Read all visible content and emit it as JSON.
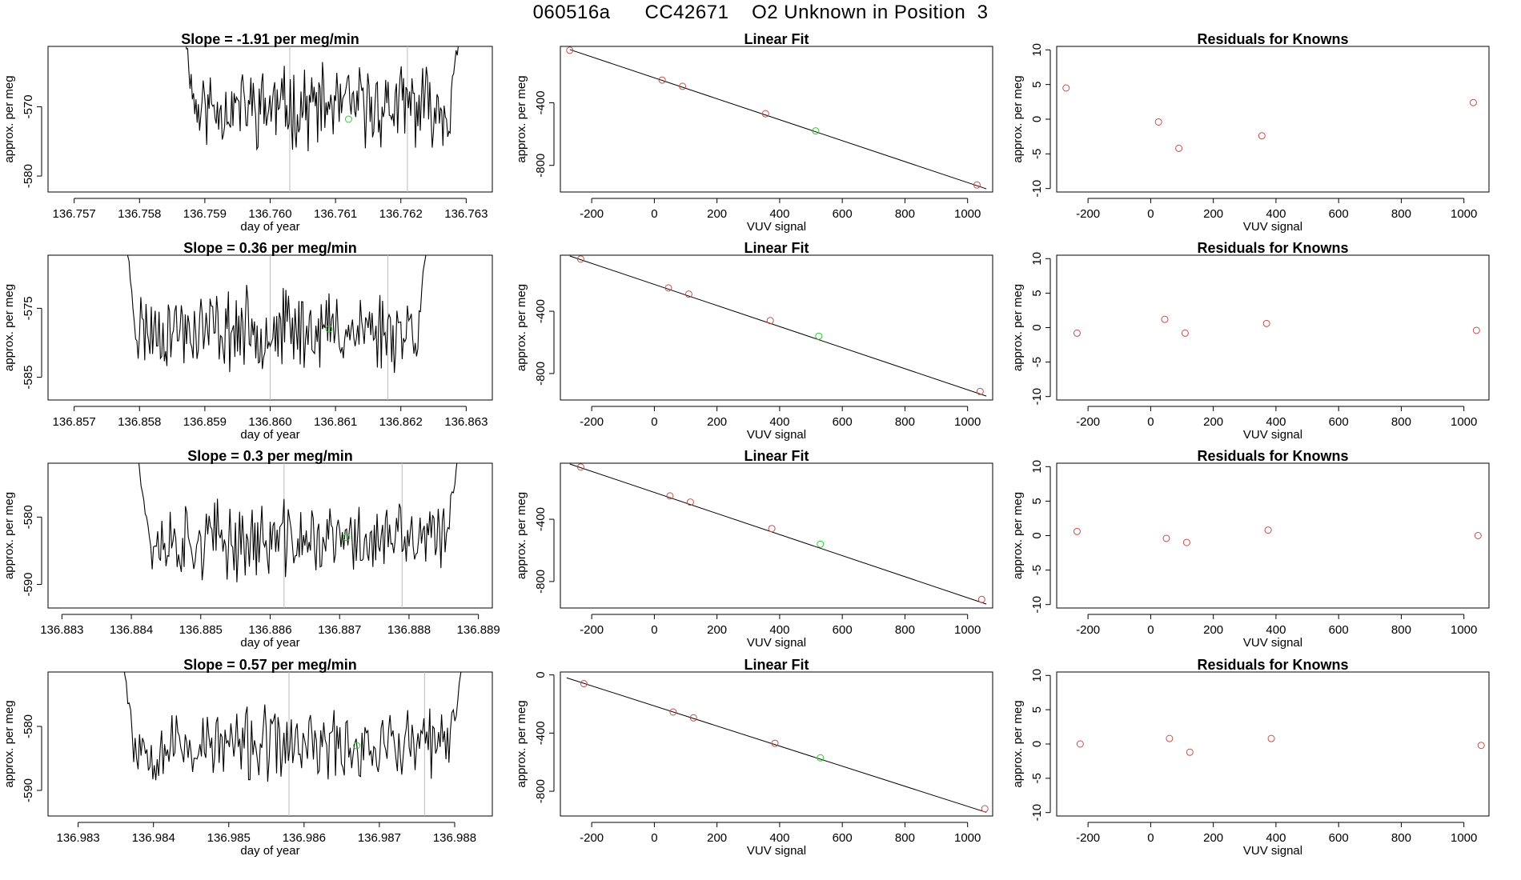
{
  "page_title": "060516a      CC42671    O2 Unknown in Position  3",
  "colors": {
    "trace": "#000000",
    "known_point": "#c0504d",
    "unknown_point": "#2ecc2e",
    "vline": "#bbbbbb",
    "axis": "#000000"
  },
  "labels": {
    "time_ylabel": "approx. per meg",
    "time_xlabel": "day of year",
    "fit_title": "Linear Fit",
    "fit_ylabel": "approx. per meg",
    "fit_xlabel": "VUV signal",
    "resid_title": "Residuals for Knowns",
    "resid_ylabel": "approx. per meg",
    "resid_xlabel": "VUV signal"
  },
  "chart_data": [
    {
      "type": "line",
      "panel": "time-series",
      "row": 1,
      "title": "Slope =  -1.91  per meg/min",
      "xlabel": "day of year",
      "ylabel": "approx. per meg",
      "xlim": [
        136.7566,
        136.7634
      ],
      "ylim": [
        -582.3,
        -561.3
      ],
      "xticks": [
        "136.757",
        "136.758",
        "136.759",
        "136.760",
        "136.761",
        "136.762",
        "136.763"
      ],
      "yticks": [
        "-570",
        "-580"
      ],
      "trace_start": 136.7587,
      "trace_end": 136.7629,
      "start_level": -560,
      "end_level": -560,
      "base": -570,
      "noise": 4.5,
      "seed": 11,
      "vlines": [
        136.7603,
        136.7621
      ],
      "unknown_point": {
        "x": 136.7612,
        "y": -571.8
      }
    },
    {
      "type": "scatter",
      "panel": "linear-fit",
      "row": 1,
      "title": "Linear Fit",
      "xlabel": "VUV signal",
      "ylabel": "approx. per meg",
      "xlim": [
        -300,
        1080
      ],
      "ylim": [
        -970,
        -40
      ],
      "xticks": [
        -200,
        0,
        200,
        400,
        600,
        800,
        1000
      ],
      "yticks": [
        -400,
        -800
      ],
      "fit_line": {
        "x": [
          -270,
          1060
        ],
        "y": [
          -60,
          -950
        ]
      },
      "knowns": [
        {
          "x": -270,
          "y": -65
        },
        {
          "x": 25,
          "y": -255
        },
        {
          "x": 90,
          "y": -295
        },
        {
          "x": 355,
          "y": -470
        },
        {
          "x": 1030,
          "y": -925
        }
      ],
      "unknown": {
        "x": 515,
        "y": -580
      }
    },
    {
      "type": "scatter",
      "panel": "residuals",
      "row": 1,
      "title": "Residuals for Knowns",
      "xlabel": "VUV signal",
      "ylabel": "approx. per meg",
      "xlim": [
        -300,
        1080
      ],
      "ylim": [
        -10.5,
        10.5
      ],
      "xticks": [
        -200,
        0,
        200,
        400,
        600,
        800,
        1000
      ],
      "yticks": [
        10,
        5,
        0,
        -5,
        -10
      ],
      "points": [
        {
          "x": -270,
          "y": 4.5
        },
        {
          "x": 25,
          "y": -0.4
        },
        {
          "x": 90,
          "y": -4.2
        },
        {
          "x": 355,
          "y": -2.4
        },
        {
          "x": 1030,
          "y": 2.4
        }
      ]
    },
    {
      "type": "line",
      "panel": "time-series",
      "row": 2,
      "title": "Slope =  0.36  per meg/min",
      "xlabel": "day of year",
      "ylabel": "approx. per meg",
      "xlim": [
        136.8566,
        136.8634
      ],
      "ylim": [
        -588.3,
        -567.3
      ],
      "xticks": [
        "136.857",
        "136.858",
        "136.859",
        "136.860",
        "136.861",
        "136.862",
        "136.863"
      ],
      "yticks": [
        "-575",
        "-585"
      ],
      "trace_start": 136.8578,
      "trace_end": 136.8624,
      "start_level": -566,
      "end_level": -566,
      "base": -578,
      "noise": 4.5,
      "seed": 23,
      "vlines": [
        136.86,
        136.8618
      ],
      "unknown_point": {
        "x": 136.8609,
        "y": -578.0
      }
    },
    {
      "type": "scatter",
      "panel": "linear-fit",
      "row": 2,
      "title": "Linear Fit",
      "xlabel": "VUV signal",
      "ylabel": "approx. per meg",
      "xlim": [
        -300,
        1080
      ],
      "ylim": [
        -970,
        -40
      ],
      "xticks": [
        -200,
        0,
        200,
        400,
        600,
        800,
        1000
      ],
      "yticks": [
        -400,
        -800
      ],
      "fit_line": {
        "x": [
          -270,
          1060
        ],
        "y": [
          -45,
          -945
        ]
      },
      "knowns": [
        {
          "x": -235,
          "y": -65
        },
        {
          "x": 45,
          "y": -250
        },
        {
          "x": 110,
          "y": -290
        },
        {
          "x": 370,
          "y": -460
        },
        {
          "x": 1040,
          "y": -915
        }
      ],
      "unknown": {
        "x": 525,
        "y": -560
      }
    },
    {
      "type": "scatter",
      "panel": "residuals",
      "row": 2,
      "title": "Residuals for Knowns",
      "xlabel": "VUV signal",
      "ylabel": "approx. per meg",
      "xlim": [
        -300,
        1080
      ],
      "ylim": [
        -10.5,
        10.5
      ],
      "xticks": [
        -200,
        0,
        200,
        400,
        600,
        800,
        1000
      ],
      "yticks": [
        10,
        5,
        0,
        -5,
        -10
      ],
      "points": [
        {
          "x": -235,
          "y": -0.8
        },
        {
          "x": 45,
          "y": 1.2
        },
        {
          "x": 110,
          "y": -0.8
        },
        {
          "x": 370,
          "y": 0.6
        },
        {
          "x": 1040,
          "y": -0.4
        }
      ]
    },
    {
      "type": "line",
      "panel": "time-series",
      "row": 3,
      "title": "Slope =  0.3  per meg/min",
      "xlabel": "day of year",
      "ylabel": "approx. per meg",
      "xlim": [
        136.8828,
        136.8892
      ],
      "ylim": [
        -593.5,
        -572.0
      ],
      "xticks": [
        "136.883",
        "136.884",
        "136.885",
        "136.886",
        "136.887",
        "136.888",
        "136.889"
      ],
      "yticks": [
        "-580",
        "-590"
      ],
      "trace_start": 136.8841,
      "trace_end": 136.8887,
      "start_level": -571,
      "end_level": -571,
      "base": -583.5,
      "noise": 4.5,
      "seed": 37,
      "vlines": [
        136.8862,
        136.8879
      ],
      "unknown_point": {
        "x": 136.8871,
        "y": -583.0
      }
    },
    {
      "type": "scatter",
      "panel": "linear-fit",
      "row": 3,
      "title": "Linear Fit",
      "xlabel": "VUV signal",
      "ylabel": "approx. per meg",
      "xlim": [
        -300,
        1080
      ],
      "ylim": [
        -970,
        -40
      ],
      "xticks": [
        -200,
        0,
        200,
        400,
        600,
        800,
        1000
      ],
      "yticks": [
        -400,
        -800
      ],
      "fit_line": {
        "x": [
          -270,
          1060
        ],
        "y": [
          -45,
          -945
        ]
      },
      "knowns": [
        {
          "x": -235,
          "y": -65
        },
        {
          "x": 50,
          "y": -250
        },
        {
          "x": 115,
          "y": -290
        },
        {
          "x": 375,
          "y": -460
        },
        {
          "x": 1045,
          "y": -915
        }
      ],
      "unknown": {
        "x": 530,
        "y": -560
      }
    },
    {
      "type": "scatter",
      "panel": "residuals",
      "row": 3,
      "title": "Residuals for Knowns",
      "xlabel": "VUV signal",
      "ylabel": "approx. per meg",
      "xlim": [
        -300,
        1080
      ],
      "ylim": [
        -10.5,
        10.5
      ],
      "xticks": [
        -200,
        0,
        200,
        400,
        600,
        800,
        1000
      ],
      "yticks": [
        10,
        5,
        0,
        -5,
        -10
      ],
      "points": [
        {
          "x": -235,
          "y": 0.6
        },
        {
          "x": 50,
          "y": -0.4
        },
        {
          "x": 115,
          "y": -1.0
        },
        {
          "x": 375,
          "y": 0.8
        },
        {
          "x": 1045,
          "y": 0.0
        }
      ]
    },
    {
      "type": "line",
      "panel": "time-series",
      "row": 4,
      "title": "Slope =  0.57  per meg/min",
      "xlabel": "day of year",
      "ylabel": "approx. per meg",
      "xlim": [
        136.9826,
        136.9885
      ],
      "ylim": [
        -594.0,
        -571.5
      ],
      "xticks": [
        "136.983",
        "136.984",
        "136.985",
        "136.986",
        "136.987",
        "136.988"
      ],
      "yticks": [
        "-580",
        "-590"
      ],
      "trace_start": 136.9836,
      "trace_end": 136.9881,
      "start_level": -570,
      "end_level": -570,
      "base": -583,
      "noise": 4.5,
      "seed": 53,
      "vlines": [
        136.9858,
        136.9876
      ],
      "unknown_point": {
        "x": 136.9867,
        "y": -583.0
      }
    },
    {
      "type": "scatter",
      "panel": "linear-fit",
      "row": 4,
      "title": "Linear Fit",
      "xlabel": "VUV signal",
      "ylabel": "approx. per meg",
      "xlim": [
        -300,
        1080
      ],
      "ylim": [
        -970,
        20
      ],
      "xticks": [
        -200,
        0,
        200,
        400,
        600,
        800,
        1000
      ],
      "yticks": [
        0,
        -400,
        -800
      ],
      "fit_line": {
        "x": [
          -280,
          1060
        ],
        "y": [
          -20,
          -945
        ]
      },
      "knowns": [
        {
          "x": -225,
          "y": -60
        },
        {
          "x": 60,
          "y": -255
        },
        {
          "x": 125,
          "y": -295
        },
        {
          "x": 385,
          "y": -470
        },
        {
          "x": 1055,
          "y": -920
        }
      ],
      "unknown": {
        "x": 530,
        "y": -570
      }
    },
    {
      "type": "scatter",
      "panel": "residuals",
      "row": 4,
      "title": "Residuals for Knowns",
      "xlabel": "VUV signal",
      "ylabel": "approx. per meg",
      "xlim": [
        -300,
        1080
      ],
      "ylim": [
        -10.5,
        10.5
      ],
      "xticks": [
        -200,
        0,
        200,
        400,
        600,
        800,
        1000
      ],
      "yticks": [
        10,
        5,
        0,
        -5,
        -10
      ],
      "points": [
        {
          "x": -225,
          "y": 0.0
        },
        {
          "x": 60,
          "y": 0.8
        },
        {
          "x": 125,
          "y": -1.2
        },
        {
          "x": 385,
          "y": 0.8
        },
        {
          "x": 1055,
          "y": -0.2
        }
      ]
    }
  ]
}
